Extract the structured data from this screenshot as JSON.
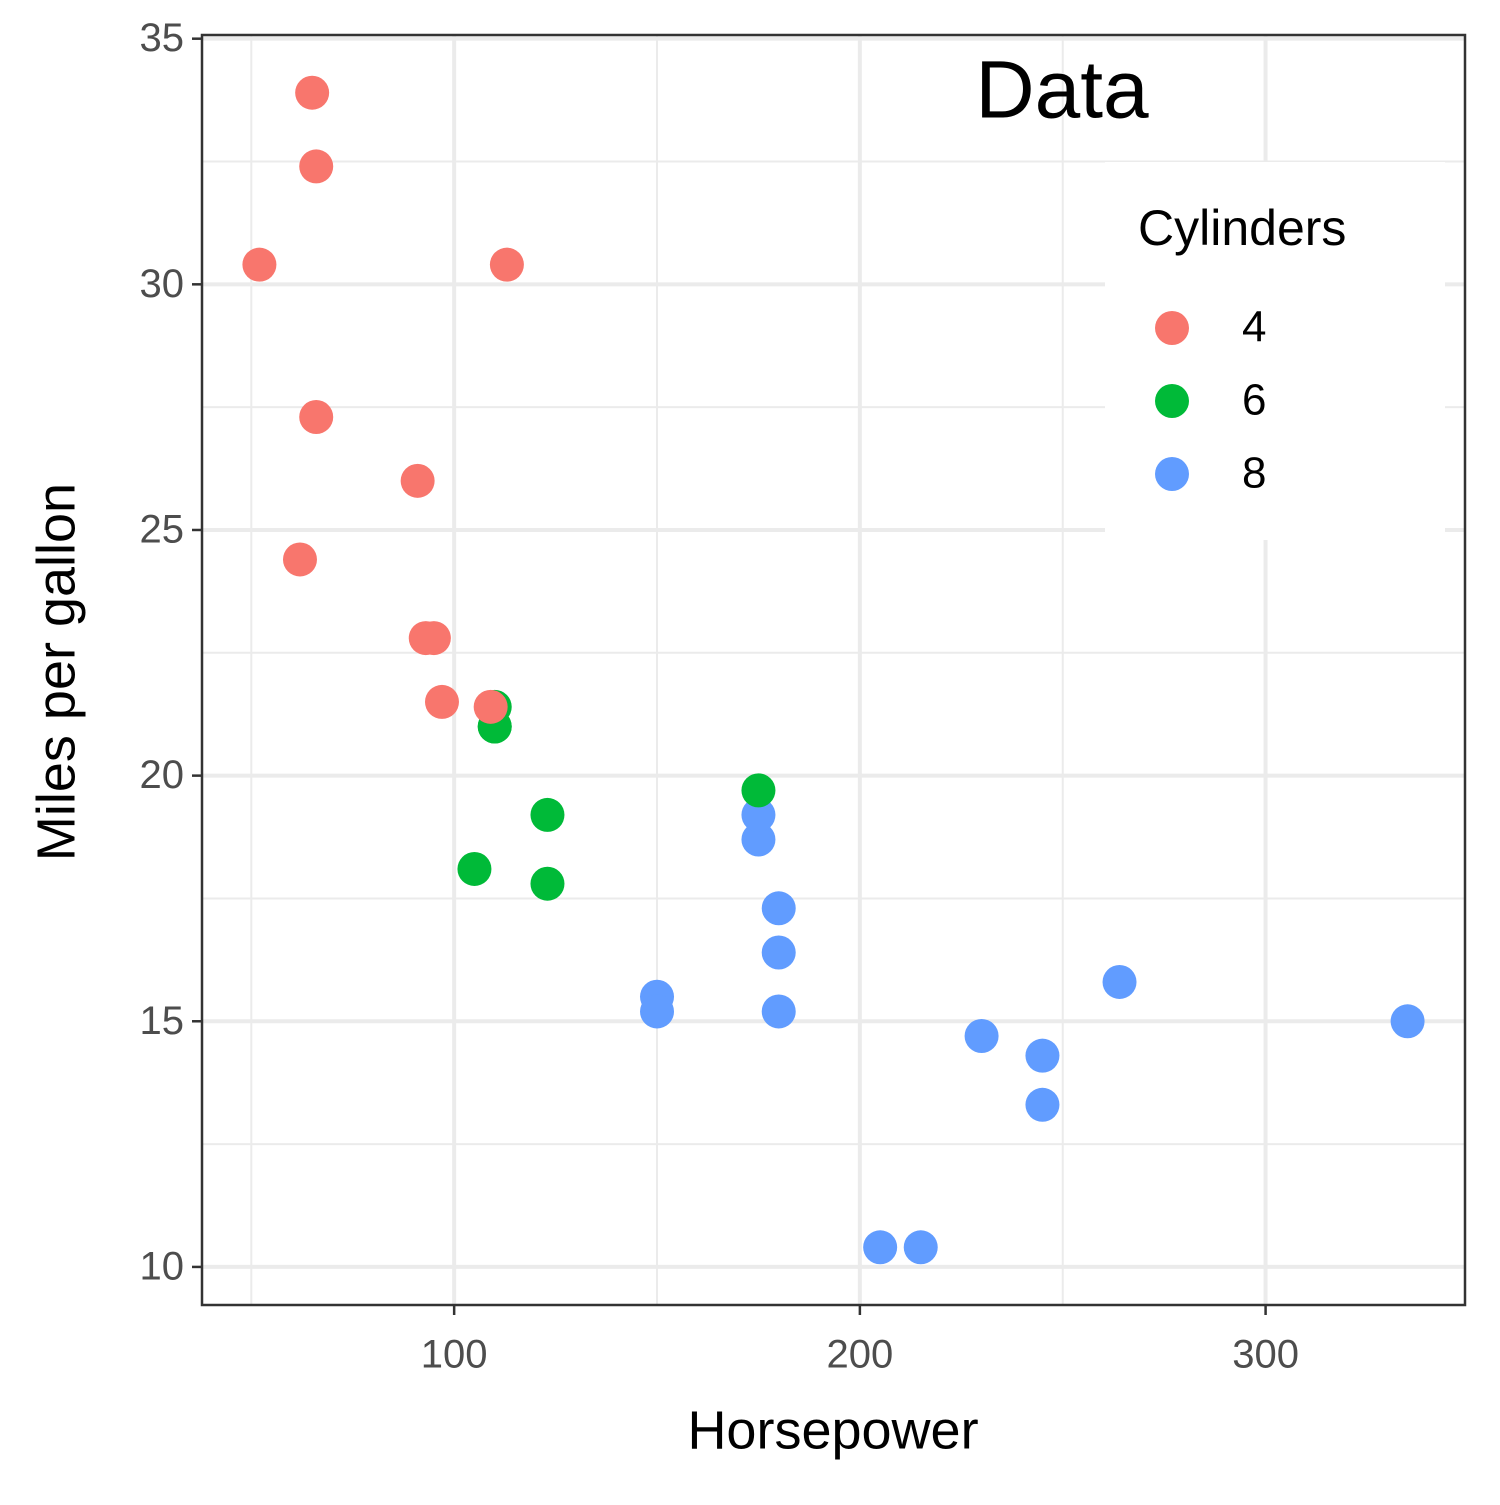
{
  "chart_data": {
    "type": "scatter",
    "title": "Data",
    "x_label": "Horsepower",
    "y_label": "Miles per gallon",
    "legend_title": "Cylinders",
    "legend_position": "top-right",
    "xlim": [
      37.85,
      349.15
    ],
    "ylim": [
      9.225,
      35.075
    ],
    "xticks": [
      100,
      200,
      300
    ],
    "yticks": [
      10,
      15,
      20,
      25,
      30,
      35
    ],
    "grid": true,
    "series": [
      {
        "name": "4",
        "color": "#f8766d",
        "x": [
          93,
          62,
          95,
          66,
          52,
          65,
          97,
          66,
          91,
          113,
          109
        ],
        "values": [
          22.8,
          24.4,
          22.8,
          32.4,
          30.4,
          33.9,
          21.5,
          27.3,
          26,
          30.4,
          21.4
        ]
      },
      {
        "name": "6",
        "color": "#00ba38",
        "x": [
          110,
          110,
          110,
          105,
          123,
          123,
          175
        ],
        "values": [
          21,
          21,
          21.4,
          18.1,
          19.2,
          17.8,
          19.7
        ]
      },
      {
        "name": "8",
        "color": "#619cff",
        "x": [
          175,
          245,
          180,
          180,
          180,
          205,
          215,
          230,
          150,
          150,
          245,
          175,
          264,
          335
        ],
        "values": [
          18.7,
          14.3,
          16.4,
          17.3,
          15.2,
          10.4,
          10.4,
          14.7,
          15.5,
          15.2,
          13.3,
          19.2,
          15.8,
          15
        ]
      }
    ]
  }
}
